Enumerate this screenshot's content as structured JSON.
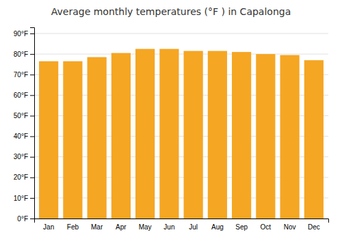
{
  "chart_data": {
    "type": "bar",
    "title": "Average monthly temperatures (°F ) in Capalonga",
    "categories": [
      "Jan",
      "Feb",
      "Mar",
      "Apr",
      "May",
      "Jun",
      "Jul",
      "Aug",
      "Sep",
      "Oct",
      "Nov",
      "Dec"
    ],
    "values": [
      76.5,
      76.5,
      78.5,
      80.5,
      82.5,
      82.5,
      81.5,
      81.5,
      81.0,
      80.0,
      79.5,
      77.0
    ],
    "color": "#F5A623",
    "ylim": [
      0,
      93
    ],
    "yticks": [
      {
        "value": 0,
        "label": "0°F"
      },
      {
        "value": 10,
        "label": "10°F"
      },
      {
        "value": 20,
        "label": "20°F"
      },
      {
        "value": 30,
        "label": "30°F"
      },
      {
        "value": 40,
        "label": "40°F"
      },
      {
        "value": 50,
        "label": "50°F"
      },
      {
        "value": 60,
        "label": "60°F"
      },
      {
        "value": 70,
        "label": "70°F"
      },
      {
        "value": 80,
        "label": "80°F"
      },
      {
        "value": 90,
        "label": "90°F"
      }
    ],
    "grid": true
  }
}
